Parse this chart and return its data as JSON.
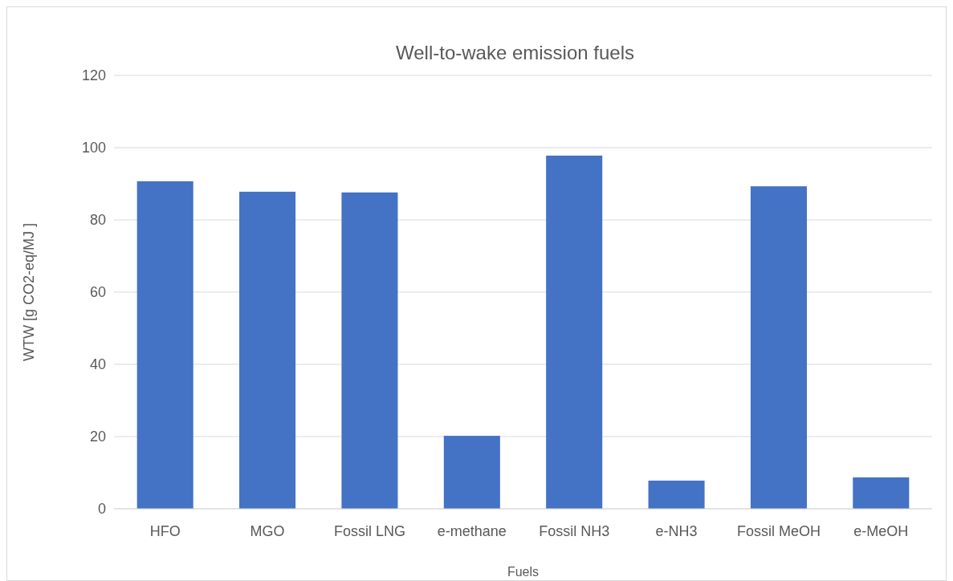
{
  "chart_data": {
    "type": "bar",
    "title": "Well-to-wake emission fuels",
    "xlabel": "Fuels",
    "ylabel": "WTW [g CO2-eq/MJ ]",
    "categories": [
      "HFO",
      "MGO",
      "Fossil LNG",
      "e-methane",
      "Fossil NH3",
      "e-NH3",
      "Fossil MeOH",
      "e-MeOH"
    ],
    "values": [
      90.7,
      87.8,
      87.6,
      20.2,
      97.8,
      7.8,
      89.3,
      8.7
    ],
    "color": "#4472c4",
    "ylim": [
      0,
      120
    ],
    "yticks": [
      0,
      20,
      40,
      60,
      80,
      100,
      120
    ],
    "grid": "y"
  }
}
